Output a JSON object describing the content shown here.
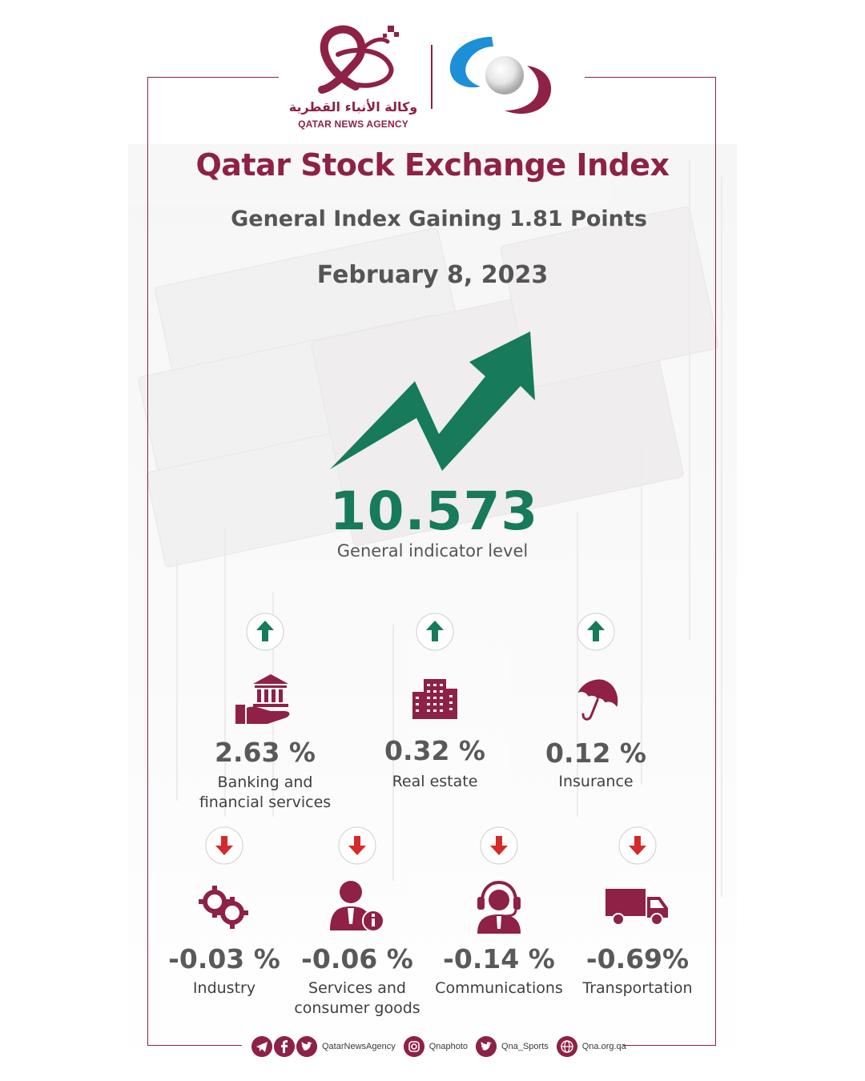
{
  "logo": {
    "arabic": "وكالة الأنباء القطرية",
    "english": "QATAR NEWS AGENCY"
  },
  "header": {
    "title": "Qatar Stock Exchange Index",
    "subtitle": "General Index Gaining 1.81 Points",
    "date": "February 8, 2023"
  },
  "main": {
    "value": "10.573",
    "caption": "General indicator level"
  },
  "sectors_up": [
    {
      "pct": "2.63 %",
      "label_1": "Banking and",
      "label_2": "financial services",
      "icon": "bank-hand-icon",
      "direction": "up"
    },
    {
      "pct": "0.32 %",
      "label_1": "Real estate",
      "label_2": "",
      "icon": "buildings-icon",
      "direction": "up"
    },
    {
      "pct": "0.12 %",
      "label_1": "Insurance",
      "label_2": "",
      "icon": "umbrella-icon",
      "direction": "up"
    }
  ],
  "sectors_down": [
    {
      "pct": "-0.03 %",
      "label_1": "Industry",
      "label_2": "",
      "icon": "gears-icon",
      "direction": "down"
    },
    {
      "pct": "-0.06 %",
      "label_1": "Services and",
      "label_2": "consumer goods",
      "icon": "service-person-icon",
      "direction": "down"
    },
    {
      "pct": "-0.14 %",
      "label_1": "Communications",
      "label_2": "",
      "icon": "headset-agent-icon",
      "direction": "down"
    },
    {
      "pct": "-0.69%",
      "label_1": "Transportation",
      "label_2": "",
      "icon": "truck-icon",
      "direction": "down"
    }
  ],
  "footer": {
    "handle_social": "QatarNewsAgency",
    "handle_instagram": "Qnaphoto",
    "handle_twitter": "Qna_Sports",
    "website": "Qna.org.qa"
  },
  "colors": {
    "maroon": "#8e2145",
    "green": "#167a5b",
    "red": "#d42a2a",
    "text_gray": "#555555"
  }
}
